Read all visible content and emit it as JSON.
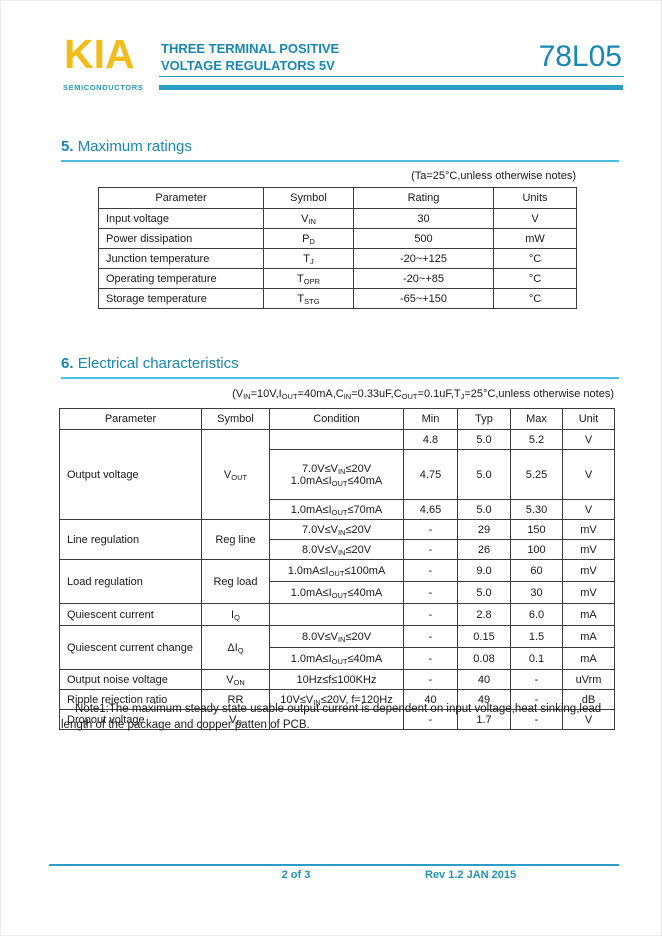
{
  "header": {
    "brand": "KIA",
    "brand_sub": "SEMICONDUCTORS",
    "title_line1": "THREE TERMINAL POSITIVE",
    "title_line2": "VOLTAGE REGULATORS 5V",
    "part_number": "78L05"
  },
  "colors": {
    "brand_gold": "#f2bd1b",
    "accent_teal": "#1787b3",
    "rule_cyan": "#4abfe0",
    "bar_teal": "#2b9ec6"
  },
  "max_ratings": {
    "section_no": "5.",
    "section_title": "Maximum ratings",
    "condition_note": "(Ta=25°C,unless otherwise notes)",
    "columns": [
      "Parameter",
      "Symbol",
      "Rating",
      "Units"
    ],
    "rows": [
      {
        "parameter": "Input voltage",
        "symbol": "V_{IN}",
        "rating": "30",
        "units": "V"
      },
      {
        "parameter": "Power dissipation",
        "symbol": "P_{D}",
        "rating": "500",
        "units": "mW"
      },
      {
        "parameter": "Junction temperature",
        "symbol": "T_{J}",
        "rating": "-20~+125",
        "units": "°C"
      },
      {
        "parameter": "Operating temperature",
        "symbol": "T_{OPR}",
        "rating": "-20~+85",
        "units": "°C"
      },
      {
        "parameter": "Storage temperature",
        "symbol": "T_{STG}",
        "rating": "-65~+150",
        "units": "°C"
      }
    ]
  },
  "electrical": {
    "section_no": "6.",
    "section_title": "Electrical characteristics",
    "condition_note": "(V_{IN}=10V,I_{OUT}=40mA,C_{IN}=0.33uF,C_{OUT}=0.1uF,T_{J}=25°C,unless otherwise notes)",
    "columns": [
      "Parameter",
      "Symbol",
      "Condition",
      "Min",
      "Typ",
      "Max",
      "Unit"
    ],
    "groups": [
      {
        "parameter": "Output voltage",
        "symbol": "V_{OUT}",
        "rows": [
          {
            "condition": "",
            "min": "4.8",
            "typ": "5.0",
            "max": "5.2",
            "unit": "V"
          },
          {
            "condition": "7.0V≤V_{IN}≤20V\n1.0mA≤I_{OUT}≤40mA",
            "min": "4.75",
            "typ": "5.0",
            "max": "5.25",
            "unit": "V"
          },
          {
            "condition": "1.0mA≤I_{OUT}≤70mA",
            "min": "4.65",
            "typ": "5.0",
            "max": "5.30",
            "unit": "V"
          }
        ]
      },
      {
        "parameter": "Line regulation",
        "symbol": "Reg line",
        "rows": [
          {
            "condition": "7.0V≤V_{IN}≤20V",
            "min": "-",
            "typ": "29",
            "max": "150",
            "unit": "mV"
          },
          {
            "condition": "8.0V≤V_{IN}≤20V",
            "min": "-",
            "typ": "26",
            "max": "100",
            "unit": "mV"
          }
        ]
      },
      {
        "parameter": "Load regulation",
        "symbol": "Reg load",
        "rows": [
          {
            "condition": "1.0mA≤I_{OUT}≤100mA",
            "min": "-",
            "typ": "9.0",
            "max": "60",
            "unit": "mV"
          },
          {
            "condition": "1.0mA≤I_{OUT}≤40mA",
            "min": "-",
            "typ": "5.0",
            "max": "30",
            "unit": "mV"
          }
        ]
      },
      {
        "parameter": "Quiescent current",
        "symbol": "I_{Q}",
        "rows": [
          {
            "condition": "",
            "min": "-",
            "typ": "2.8",
            "max": "6.0",
            "unit": "mA"
          }
        ]
      },
      {
        "parameter": "Quiescent current change",
        "symbol": "ΔI_{Q}",
        "rows": [
          {
            "condition": "8.0V≤V_{IN}≤20V",
            "min": "-",
            "typ": "0.15",
            "max": "1.5",
            "unit": "mA"
          },
          {
            "condition": "1.0mA≤I_{OUT}≤40mA",
            "min": "-",
            "typ": "0.08",
            "max": "0.1",
            "unit": "mA"
          }
        ]
      },
      {
        "parameter": "Output noise voltage",
        "symbol": "V_{ON}",
        "rows": [
          {
            "condition": "10Hz≤f≤100KHz",
            "min": "-",
            "typ": "40",
            "max": "-",
            "unit": "uVrm"
          }
        ]
      },
      {
        "parameter": "Ripple rejection ratio",
        "symbol": "RR",
        "rows": [
          {
            "condition": "10V≤V_{IN}≤20V, f=120Hz",
            "min": "40",
            "typ": "49",
            "max": "-",
            "unit": "dB"
          }
        ]
      },
      {
        "parameter": "Dropout voltage",
        "symbol": "V_{D}",
        "rows": [
          {
            "condition": "",
            "min": "-",
            "typ": "1.7",
            "max": "-",
            "unit": "V"
          }
        ]
      }
    ]
  },
  "note1": "Note1:The maximum steady state usable output current is dependent on input voltage,heat sinking,lead length of the package and copper patten of PCB.",
  "footer": {
    "page": "2 of 3",
    "revision": "Rev 1.2 JAN 2015"
  }
}
